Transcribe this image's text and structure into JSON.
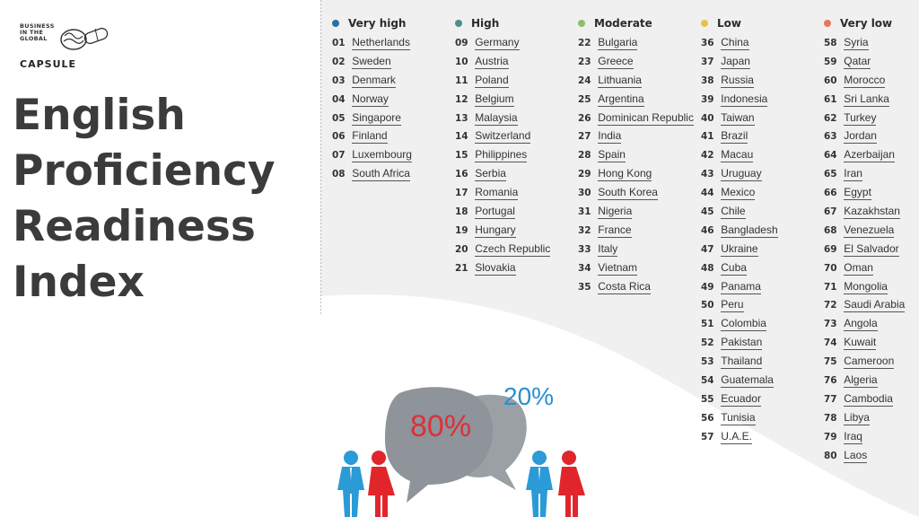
{
  "logo": {
    "small_lines": [
      "BUSINESS",
      "IN THE",
      "GLOBAL"
    ],
    "name": "CAPSULE"
  },
  "title_lines": [
    "English",
    "Proficiency",
    "Readiness",
    "Index"
  ],
  "categories": [
    {
      "label": "Very high",
      "color": "#2e6f9e",
      "countries": [
        {
          "rank": "01",
          "name": "Netherlands"
        },
        {
          "rank": "02",
          "name": "Sweden"
        },
        {
          "rank": "03",
          "name": "Denmark"
        },
        {
          "rank": "04",
          "name": "Norway"
        },
        {
          "rank": "05",
          "name": "Singapore"
        },
        {
          "rank": "06",
          "name": "Finland"
        },
        {
          "rank": "07",
          "name": "Luxembourg"
        },
        {
          "rank": "08",
          "name": "South Africa"
        }
      ]
    },
    {
      "label": "High",
      "color": "#4e8f8a",
      "countries": [
        {
          "rank": "09",
          "name": "Germany"
        },
        {
          "rank": "10",
          "name": "Austria"
        },
        {
          "rank": "11",
          "name": "Poland"
        },
        {
          "rank": "12",
          "name": "Belgium"
        },
        {
          "rank": "13",
          "name": "Malaysia"
        },
        {
          "rank": "14",
          "name": "Switzerland"
        },
        {
          "rank": "15",
          "name": "Philippines"
        },
        {
          "rank": "16",
          "name": "Serbia"
        },
        {
          "rank": "17",
          "name": "Romania"
        },
        {
          "rank": "18",
          "name": "Portugal"
        },
        {
          "rank": "19",
          "name": "Hungary"
        },
        {
          "rank": "20",
          "name": "Czech Republic"
        },
        {
          "rank": "21",
          "name": "Slovakia"
        }
      ]
    },
    {
      "label": "Moderate",
      "color": "#8fbf6a",
      "countries": [
        {
          "rank": "22",
          "name": "Bulgaria"
        },
        {
          "rank": "23",
          "name": "Greece"
        },
        {
          "rank": "24",
          "name": "Lithuania"
        },
        {
          "rank": "25",
          "name": "Argentina"
        },
        {
          "rank": "26",
          "name": "Dominican Republic"
        },
        {
          "rank": "27",
          "name": "India"
        },
        {
          "rank": "28",
          "name": "Spain"
        },
        {
          "rank": "29",
          "name": "Hong Kong"
        },
        {
          "rank": "30",
          "name": "South Korea"
        },
        {
          "rank": "31",
          "name": "Nigeria"
        },
        {
          "rank": "32",
          "name": "France"
        },
        {
          "rank": "33",
          "name": "Italy"
        },
        {
          "rank": "34",
          "name": "Vietnam"
        },
        {
          "rank": "35",
          "name": "Costa Rica"
        }
      ]
    },
    {
      "label": "Low",
      "color": "#e6c443",
      "countries": [
        {
          "rank": "36",
          "name": "China"
        },
        {
          "rank": "37",
          "name": "Japan"
        },
        {
          "rank": "38",
          "name": "Russia"
        },
        {
          "rank": "39",
          "name": "Indonesia"
        },
        {
          "rank": "40",
          "name": "Taiwan"
        },
        {
          "rank": "41",
          "name": "Brazil"
        },
        {
          "rank": "42",
          "name": "Macau"
        },
        {
          "rank": "43",
          "name": "Uruguay"
        },
        {
          "rank": "44",
          "name": "Mexico"
        },
        {
          "rank": "45",
          "name": "Chile"
        },
        {
          "rank": "46",
          "name": "Bangladesh"
        },
        {
          "rank": "47",
          "name": "Ukraine"
        },
        {
          "rank": "48",
          "name": "Cuba"
        },
        {
          "rank": "49",
          "name": "Panama"
        },
        {
          "rank": "50",
          "name": "Peru"
        },
        {
          "rank": "51",
          "name": "Colombia"
        },
        {
          "rank": "52",
          "name": "Pakistan"
        },
        {
          "rank": "53",
          "name": "Thailand"
        },
        {
          "rank": "54",
          "name": "Guatemala"
        },
        {
          "rank": "55",
          "name": "Ecuador"
        },
        {
          "rank": "56",
          "name": "Tunisia"
        },
        {
          "rank": "57",
          "name": "U.A.E."
        }
      ]
    },
    {
      "label": "Very low",
      "color": "#e8765a",
      "countries": [
        {
          "rank": "58",
          "name": "Syria"
        },
        {
          "rank": "59",
          "name": "Qatar"
        },
        {
          "rank": "60",
          "name": "Morocco"
        },
        {
          "rank": "61",
          "name": "Sri Lanka"
        },
        {
          "rank": "62",
          "name": "Turkey"
        },
        {
          "rank": "63",
          "name": "Jordan"
        },
        {
          "rank": "64",
          "name": "Azerbaijan"
        },
        {
          "rank": "65",
          "name": "Iran"
        },
        {
          "rank": "66",
          "name": "Egypt"
        },
        {
          "rank": "67",
          "name": "Kazakhstan"
        },
        {
          "rank": "68",
          "name": "Venezuela"
        },
        {
          "rank": "69",
          "name": "El Salvador"
        },
        {
          "rank": "70",
          "name": "Oman"
        },
        {
          "rank": "71",
          "name": "Mongolia"
        },
        {
          "rank": "72",
          "name": "Saudi Arabia"
        },
        {
          "rank": "73",
          "name": "Angola"
        },
        {
          "rank": "74",
          "name": "Kuwait"
        },
        {
          "rank": "75",
          "name": "Cameroon"
        },
        {
          "rank": "76",
          "name": "Algeria"
        },
        {
          "rank": "77",
          "name": "Cambodia"
        },
        {
          "rank": "78",
          "name": "Libya"
        },
        {
          "rank": "79",
          "name": "Iraq"
        },
        {
          "rank": "80",
          "name": "Laos"
        }
      ]
    }
  ],
  "illustration": {
    "big_bubble_pct": "80%",
    "small_bubble_pct": "20%",
    "big_color": "#d9323a",
    "small_color": "#2a8fd0",
    "male_color": "#2a9bd6",
    "female_color": "#e0262b"
  }
}
